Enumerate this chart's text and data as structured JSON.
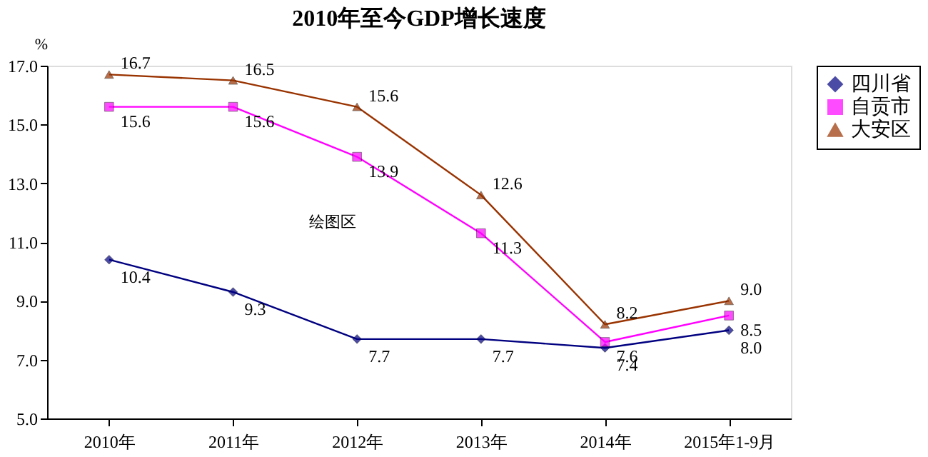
{
  "chart_data": {
    "type": "line",
    "title": "2010年至今GDP增长速度",
    "ylabel": "%",
    "categories": [
      "2010年",
      "2011年",
      "2012年",
      "2013年",
      "2014年",
      "2015年1-9月"
    ],
    "series": [
      {
        "name": "四川省",
        "color": "#000080",
        "marker": "diamond",
        "values": [
          10.4,
          9.3,
          7.7,
          7.7,
          7.4,
          8.0
        ],
        "value_labels": [
          "10.4",
          "9.3",
          "7.7",
          "7.7",
          "7.4",
          "8.0"
        ]
      },
      {
        "name": "自贡市",
        "color": "#ff00ff",
        "marker": "square",
        "values": [
          15.6,
          15.6,
          13.9,
          11.3,
          7.6,
          8.5
        ],
        "value_labels": [
          "15.6",
          "15.6",
          "13.9",
          "11.3",
          "7.6",
          "8.5"
        ]
      },
      {
        "name": "大安区",
        "color": "#993300",
        "marker": "triangle",
        "values": [
          16.7,
          16.5,
          15.6,
          12.6,
          8.2,
          9.0
        ],
        "value_labels": [
          "16.7",
          "16.5",
          "15.6",
          "12.6",
          "8.2",
          "9.0"
        ]
      }
    ],
    "ylim": [
      5,
      17
    ],
    "yticks": [
      {
        "value": 5,
        "label": "5.0"
      },
      {
        "value": 7,
        "label": "7.0"
      },
      {
        "value": 9,
        "label": "9.0"
      },
      {
        "value": 11,
        "label": "11.0"
      },
      {
        "value": 13,
        "label": "13.0"
      },
      {
        "value": 15,
        "label": "15.0"
      },
      {
        "value": 17,
        "label": "17.0"
      }
    ],
    "legend": "right",
    "grid": false,
    "annotations": [
      "绘图区"
    ]
  }
}
